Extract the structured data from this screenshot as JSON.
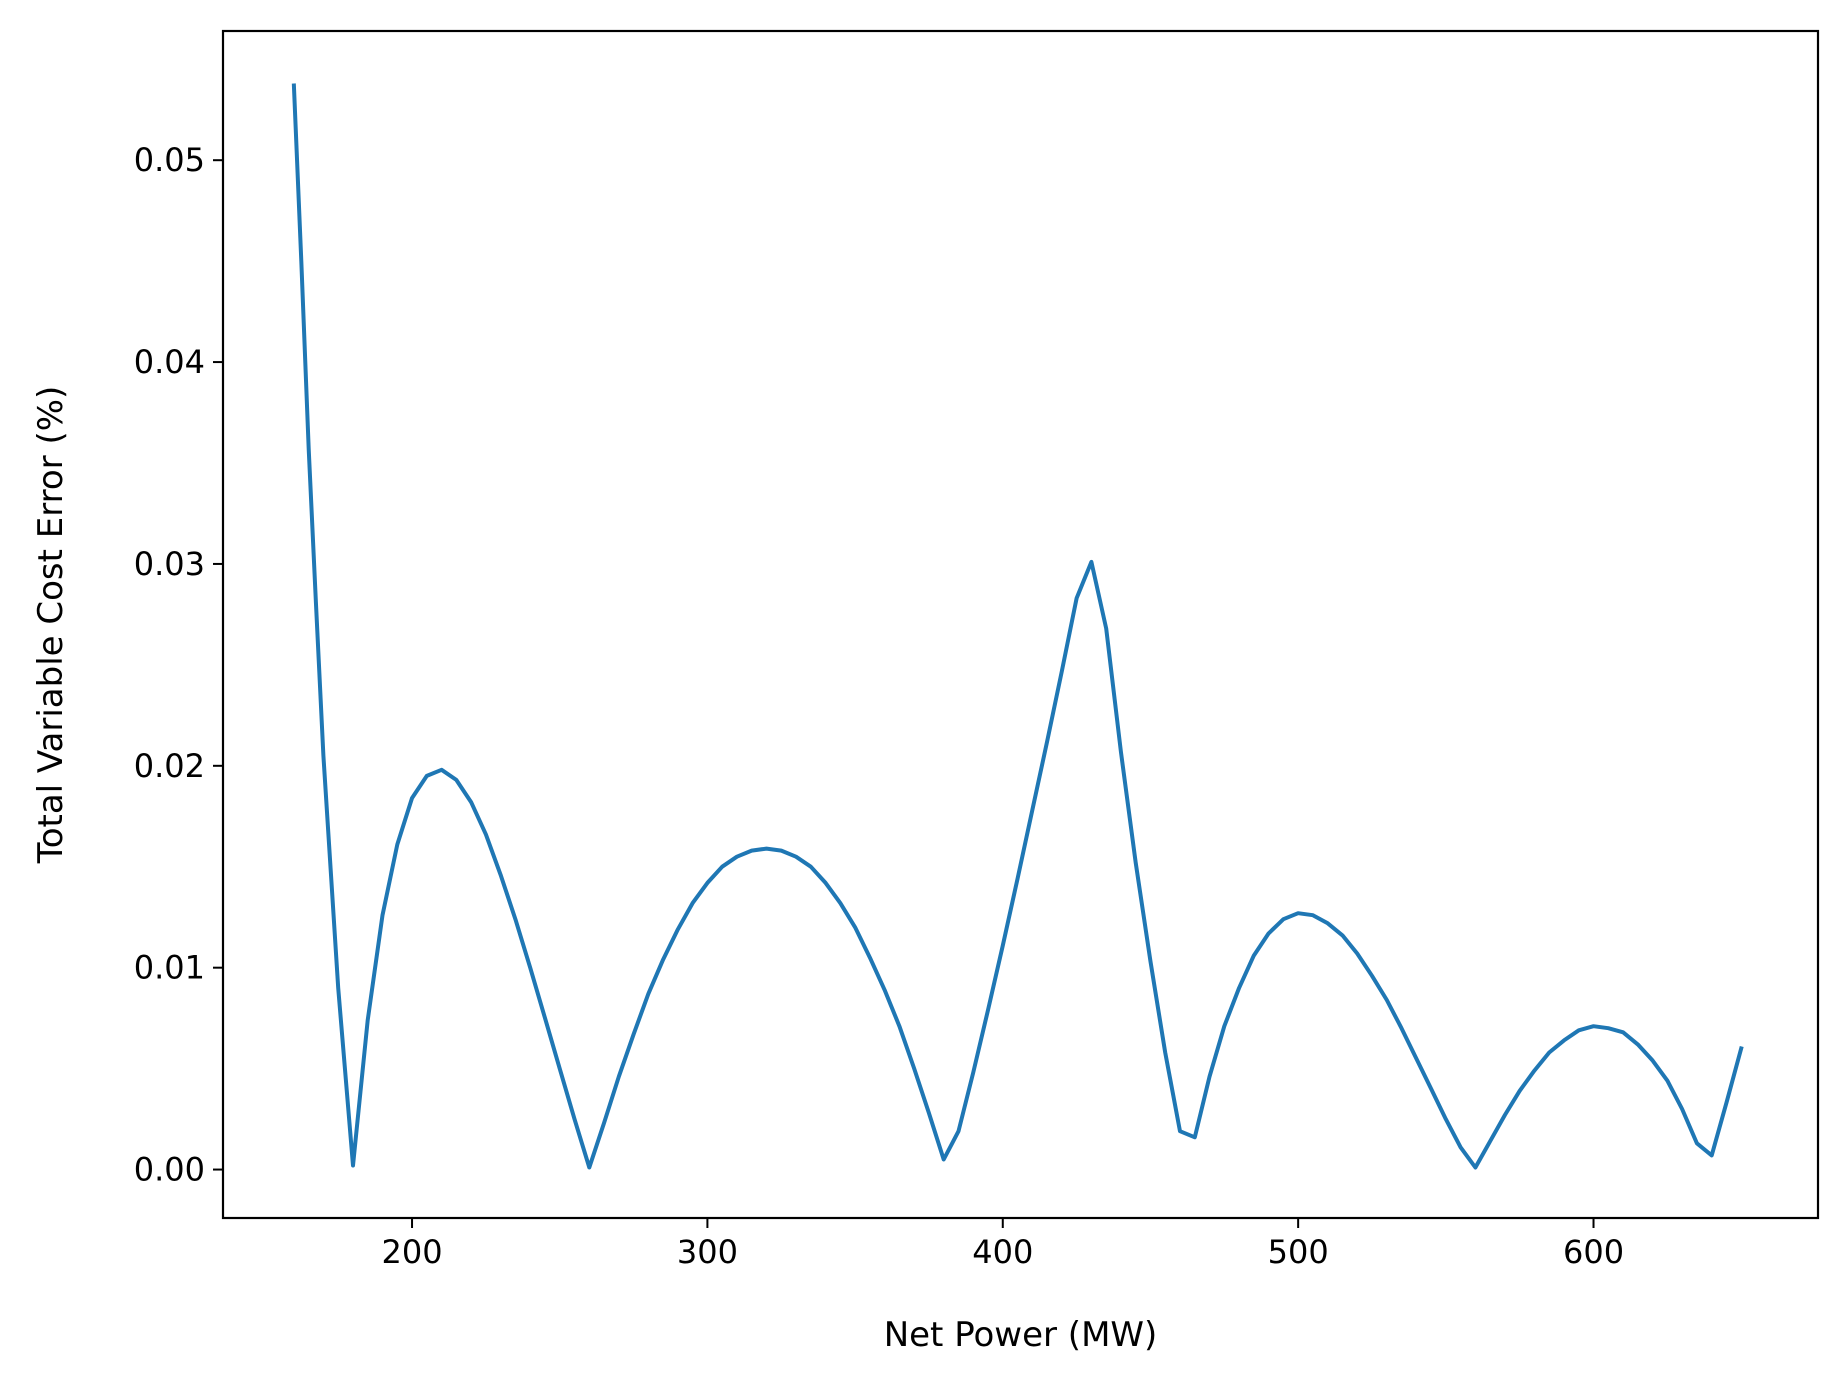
{
  "chart_data": {
    "type": "line",
    "title": "",
    "xlabel": "Net Power (MW)",
    "ylabel": "Total Variable Cost Error (%)",
    "xlim": [
      136,
      676
    ],
    "ylim": [
      -0.0024,
      0.0564
    ],
    "xticks": [
      200,
      300,
      400,
      500,
      600
    ],
    "xtick_labels": [
      "200",
      "300",
      "400",
      "500",
      "600"
    ],
    "yticks": [
      0.0,
      0.01,
      0.02,
      0.03,
      0.04,
      0.05
    ],
    "ytick_labels": [
      "0.00",
      "0.01",
      "0.02",
      "0.03",
      "0.04",
      "0.05"
    ],
    "grid": false,
    "legend": "none",
    "series": [
      {
        "color": "#1f77b4",
        "x": [
          160,
          162.5,
          165,
          167.5,
          170,
          175,
          180,
          185,
          190,
          195,
          200,
          205,
          210,
          215,
          220,
          225,
          230,
          235,
          240,
          245,
          250,
          255,
          260,
          265,
          270,
          275,
          280,
          285,
          290,
          295,
          300,
          305,
          310,
          315,
          320,
          325,
          330,
          335,
          340,
          345,
          350,
          355,
          360,
          365,
          370,
          375,
          380,
          385,
          390,
          395,
          400,
          405,
          410,
          415,
          420,
          425,
          430,
          435,
          440,
          445,
          450,
          455,
          460,
          465,
          470,
          475,
          480,
          485,
          490,
          495,
          500,
          505,
          510,
          515,
          520,
          525,
          530,
          535,
          540,
          545,
          550,
          555,
          560,
          565,
          570,
          575,
          580,
          585,
          590,
          595,
          600,
          605,
          610,
          615,
          620,
          625,
          630,
          635,
          640,
          645,
          650
        ],
        "y": [
          0.0537,
          0.045,
          0.0357,
          0.028,
          0.0205,
          0.009,
          0.0002,
          0.0074,
          0.0126,
          0.0161,
          0.0184,
          0.0195,
          0.0198,
          0.0193,
          0.0182,
          0.0166,
          0.0146,
          0.0124,
          0.01,
          0.0075,
          0.005,
          0.0025,
          0.0001,
          0.0023,
          0.0046,
          0.0067,
          0.0087,
          0.0104,
          0.0119,
          0.0132,
          0.0142,
          0.015,
          0.0155,
          0.0158,
          0.0159,
          0.0158,
          0.0155,
          0.015,
          0.0142,
          0.0132,
          0.012,
          0.0105,
          0.0089,
          0.0071,
          0.005,
          0.0028,
          0.0005,
          0.0019,
          0.0048,
          0.0079,
          0.0111,
          0.0144,
          0.0178,
          0.0212,
          0.0247,
          0.0283,
          0.0301,
          0.0268,
          0.0207,
          0.0152,
          0.0103,
          0.0058,
          0.0019,
          0.0016,
          0.0046,
          0.0071,
          0.009,
          0.0106,
          0.0117,
          0.0124,
          0.0127,
          0.0126,
          0.0122,
          0.0116,
          0.0107,
          0.0096,
          0.0084,
          0.007,
          0.0055,
          0.004,
          0.0025,
          0.0011,
          0.0001,
          0.0014,
          0.0027,
          0.0039,
          0.0049,
          0.0058,
          0.0064,
          0.0069,
          0.0071,
          0.007,
          0.0068,
          0.0062,
          0.0054,
          0.0044,
          0.003,
          0.0013,
          0.0007,
          0.0033,
          0.006
        ]
      }
    ]
  }
}
